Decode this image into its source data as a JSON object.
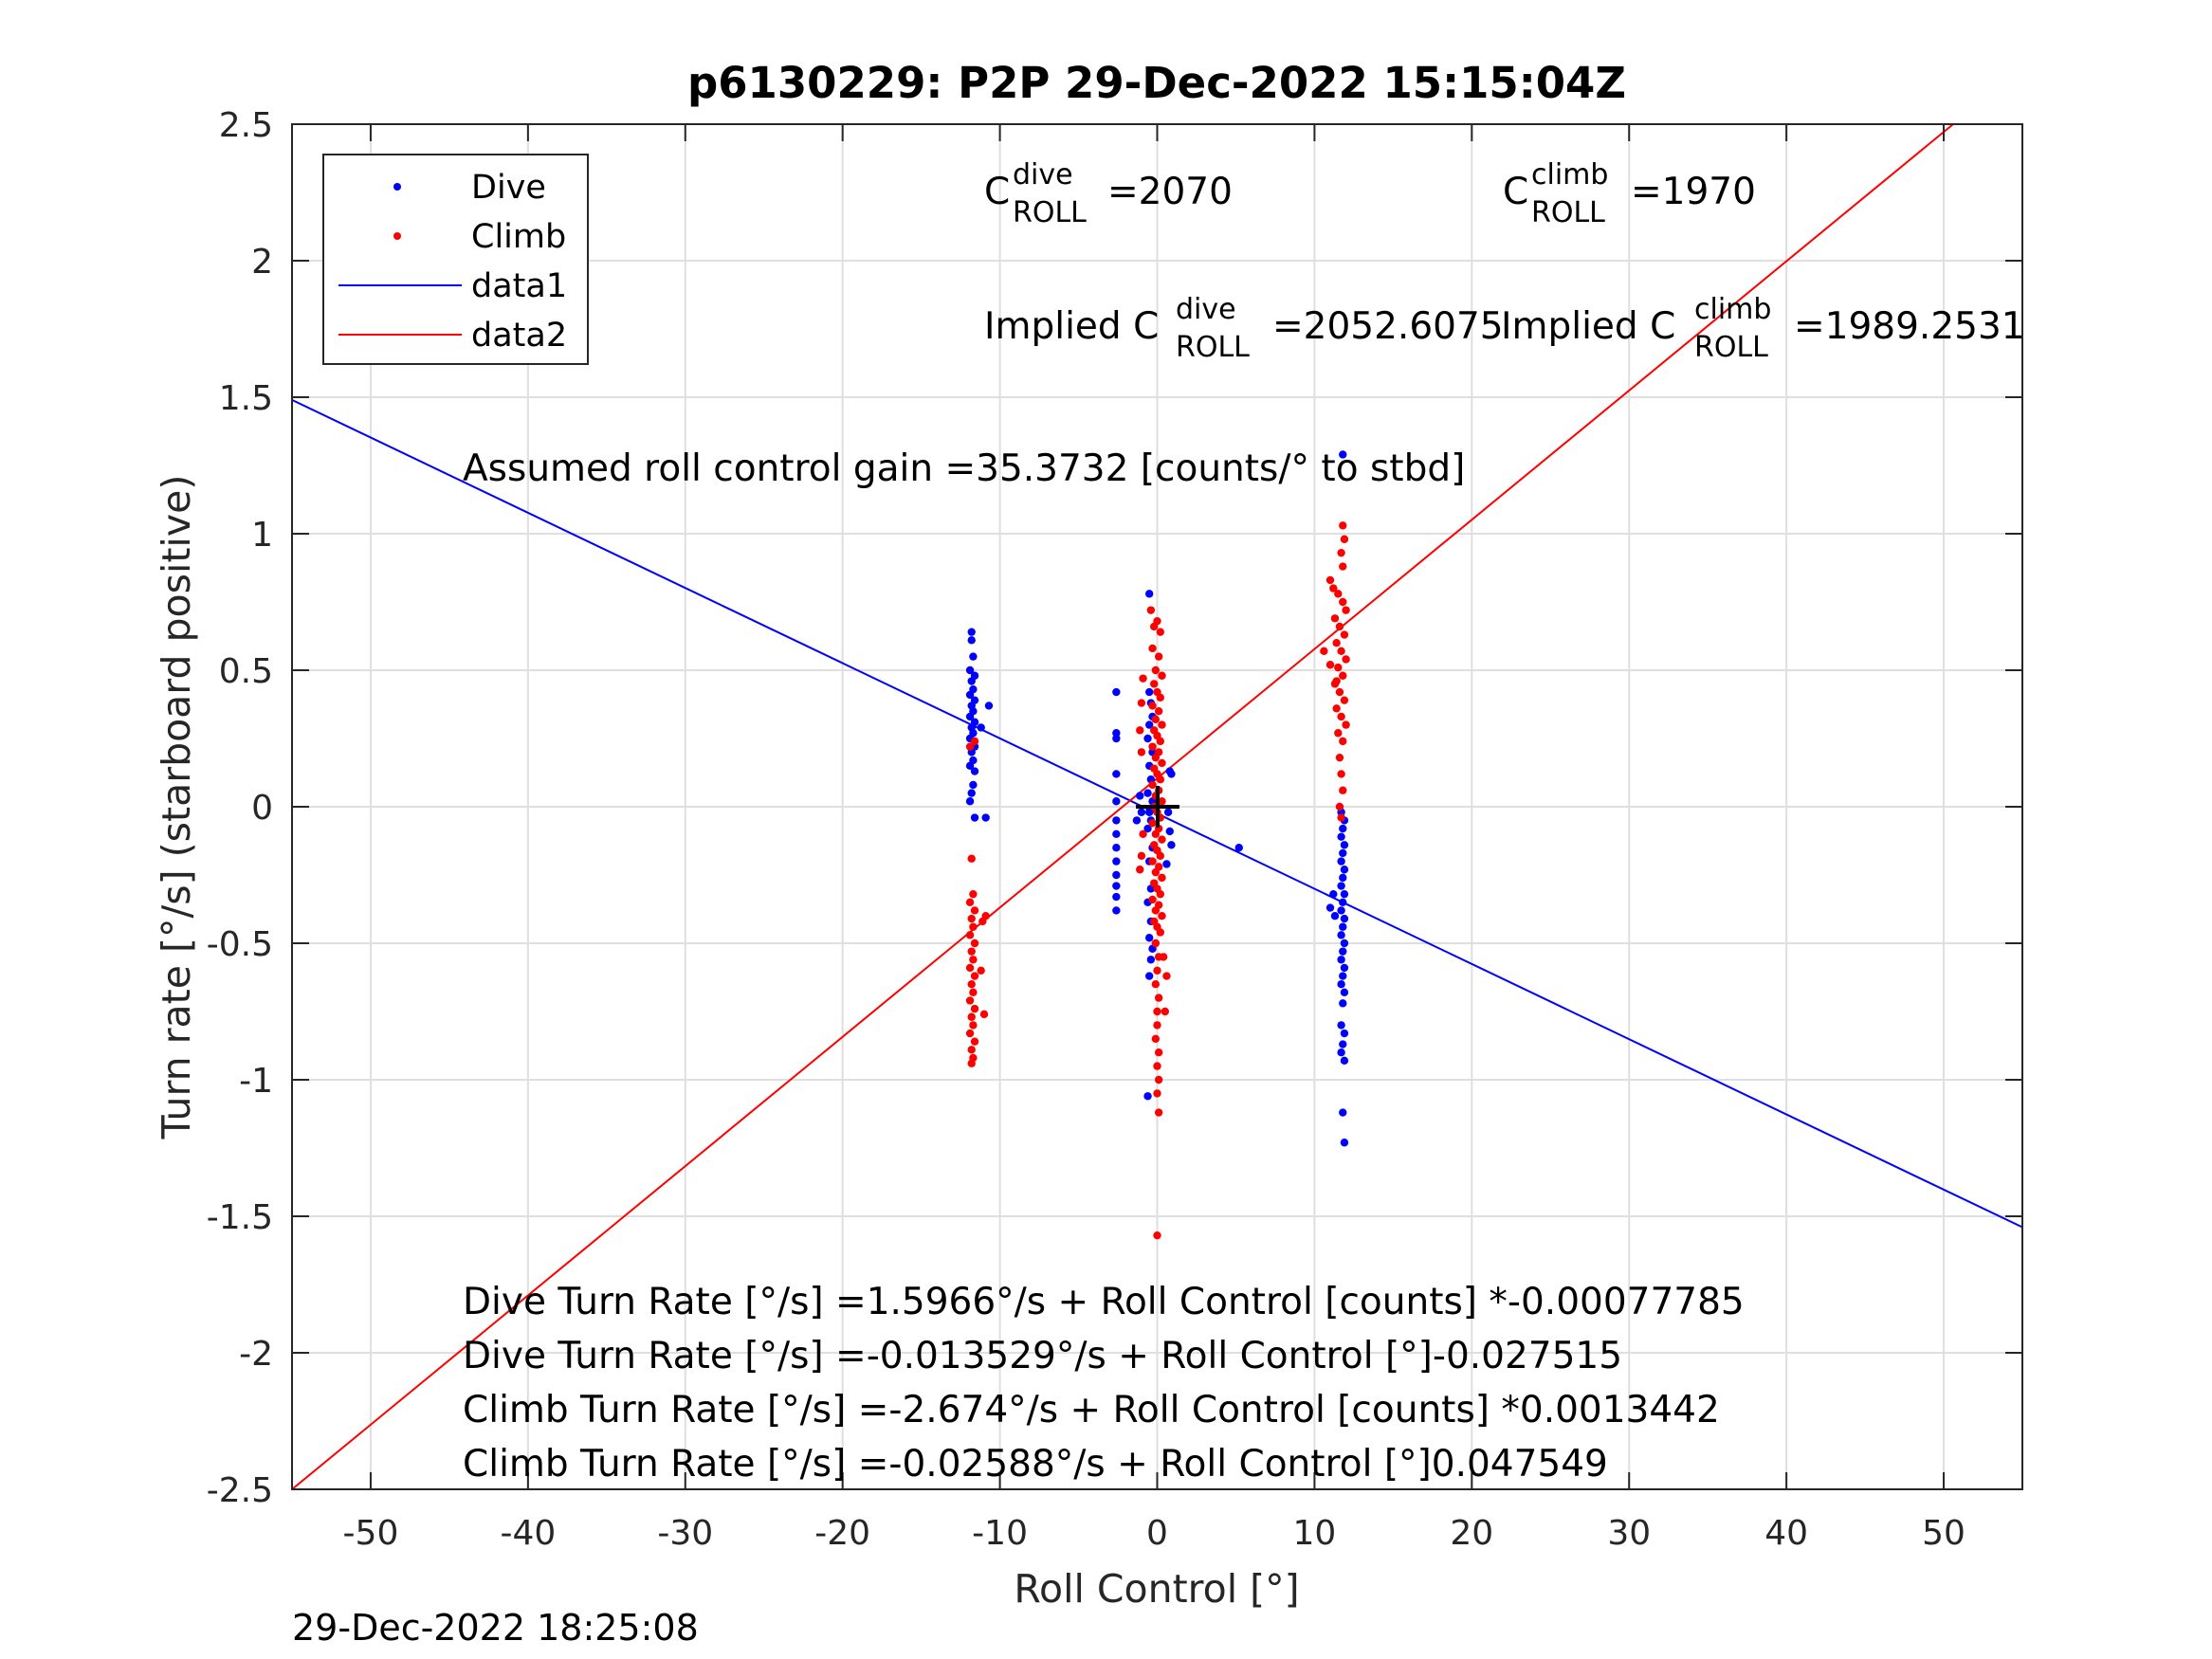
{
  "chart_data": {
    "type": "scatter",
    "title": "p6130229: P2P 29-Dec-2022 15:15:04Z",
    "xlabel": "Roll Control [°]",
    "ylabel": "Turn rate [°/s] (starboard positive)",
    "xlim": [
      -55,
      55
    ],
    "ylim": [
      -2.5,
      2.5
    ],
    "xticks": [
      -50,
      -40,
      -30,
      -20,
      -10,
      0,
      10,
      20,
      30,
      40,
      50
    ],
    "xtick_labels": [
      "-50",
      "-40",
      "-30",
      "-20",
      "-10",
      "0",
      "10",
      "20",
      "30",
      "40",
      "50"
    ],
    "yticks": [
      2.5,
      2,
      1.5,
      1,
      0.5,
      0,
      -0.5,
      -1,
      -1.5,
      -2,
      -2.5
    ],
    "ytick_labels": [
      "2.5",
      "2",
      "1.5",
      "1",
      "0.5",
      "0",
      "-0.5",
      "-1",
      "-1.5",
      "-2",
      "-2.5"
    ],
    "grid": true,
    "legend": {
      "placement": "top-left",
      "entries": [
        {
          "label": "Dive",
          "color": "#0000ff",
          "kind": "marker"
        },
        {
          "label": "Climb",
          "color": "#ff0000",
          "kind": "marker"
        },
        {
          "label": "data1",
          "color": "#0000ff",
          "kind": "line"
        },
        {
          "label": "data2",
          "color": "#ff0000",
          "kind": "line"
        }
      ]
    },
    "lines": [
      {
        "name": "data1",
        "color": "#0000ff",
        "x": [
          -55,
          55
        ],
        "y": [
          1.49,
          -1.54
        ]
      },
      {
        "name": "data2",
        "color": "#ff0000",
        "x": [
          -55,
          50.6
        ],
        "y": [
          -2.5,
          2.5
        ]
      }
    ],
    "series": [
      {
        "name": "Dive",
        "color": "#0000ff",
        "points": [
          [
            -11.8,
            0.64
          ],
          [
            -11.8,
            0.61
          ],
          [
            -11.7,
            0.55
          ],
          [
            -11.9,
            0.5
          ],
          [
            -11.6,
            0.48
          ],
          [
            -11.8,
            0.46
          ],
          [
            -11.7,
            0.43
          ],
          [
            -11.9,
            0.41
          ],
          [
            -11.6,
            0.39
          ],
          [
            -11.8,
            0.37
          ],
          [
            -11.7,
            0.35
          ],
          [
            -11.9,
            0.33
          ],
          [
            -11.6,
            0.31
          ],
          [
            -11.8,
            0.29
          ],
          [
            -11.7,
            0.27
          ],
          [
            -11.9,
            0.25
          ],
          [
            -11.6,
            0.22
          ],
          [
            -11.8,
            0.2
          ],
          [
            -11.7,
            0.17
          ],
          [
            -11.9,
            0.15
          ],
          [
            -11.6,
            0.13
          ],
          [
            -11.7,
            0.08
          ],
          [
            -11.8,
            0.05
          ],
          [
            -11.9,
            0.02
          ],
          [
            -11.6,
            -0.04
          ],
          [
            -10.9,
            -0.04
          ],
          [
            -10.7,
            0.37
          ],
          [
            -11.2,
            0.29
          ],
          [
            -2.6,
            0.42
          ],
          [
            -2.6,
            0.27
          ],
          [
            -2.6,
            0.25
          ],
          [
            -2.6,
            0.12
          ],
          [
            -2.6,
            0.02
          ],
          [
            -2.6,
            -0.05
          ],
          [
            -2.6,
            -0.1
          ],
          [
            -2.6,
            -0.15
          ],
          [
            -2.6,
            -0.2
          ],
          [
            -2.6,
            -0.25
          ],
          [
            -2.6,
            -0.29
          ],
          [
            -2.6,
            -0.33
          ],
          [
            -2.6,
            -0.38
          ],
          [
            -0.5,
            0.78
          ],
          [
            -0.5,
            0.42
          ],
          [
            -0.4,
            0.38
          ],
          [
            -0.3,
            0.33
          ],
          [
            -0.5,
            0.3
          ],
          [
            -0.6,
            0.25
          ],
          [
            -0.3,
            0.2
          ],
          [
            -0.5,
            0.15
          ],
          [
            -0.4,
            0.1
          ],
          [
            -0.6,
            0.05
          ],
          [
            -0.3,
            0.02
          ],
          [
            -0.5,
            -0.02
          ],
          [
            -0.4,
            -0.05
          ],
          [
            -0.6,
            -0.08
          ],
          [
            -0.3,
            -0.15
          ],
          [
            -0.5,
            -0.2
          ],
          [
            -0.4,
            -0.3
          ],
          [
            -0.6,
            -0.35
          ],
          [
            -0.4,
            -0.42
          ],
          [
            -0.5,
            -0.48
          ],
          [
            -0.3,
            -0.52
          ],
          [
            -0.4,
            -0.56
          ],
          [
            -0.5,
            -0.62
          ],
          [
            -0.6,
            -1.06
          ],
          [
            -1.1,
            0.04
          ],
          [
            -1.3,
            -0.05
          ],
          [
            -1.0,
            -0.02
          ],
          [
            0.8,
            0.13
          ],
          [
            0.9,
            0.12
          ],
          [
            0.7,
            -0.02
          ],
          [
            0.8,
            -0.09
          ],
          [
            0.9,
            -0.14
          ],
          [
            0.6,
            -0.21
          ],
          [
            5.2,
            -0.15
          ],
          [
            11.8,
            1.29
          ],
          [
            11.7,
            -0.02
          ],
          [
            11.9,
            -0.05
          ],
          [
            11.8,
            -0.08
          ],
          [
            11.7,
            -0.11
          ],
          [
            11.9,
            -0.14
          ],
          [
            11.8,
            -0.17
          ],
          [
            11.7,
            -0.2
          ],
          [
            11.9,
            -0.23
          ],
          [
            11.8,
            -0.26
          ],
          [
            11.7,
            -0.29
          ],
          [
            11.9,
            -0.32
          ],
          [
            11.8,
            -0.35
          ],
          [
            11.7,
            -0.38
          ],
          [
            11.9,
            -0.41
          ],
          [
            11.8,
            -0.44
          ],
          [
            11.7,
            -0.47
          ],
          [
            11.9,
            -0.5
          ],
          [
            11.8,
            -0.53
          ],
          [
            11.7,
            -0.56
          ],
          [
            11.9,
            -0.59
          ],
          [
            11.8,
            -0.62
          ],
          [
            11.7,
            -0.65
          ],
          [
            11.9,
            -0.68
          ],
          [
            11.8,
            -0.72
          ],
          [
            11.7,
            -0.8
          ],
          [
            11.9,
            -0.83
          ],
          [
            11.8,
            -0.87
          ],
          [
            11.7,
            -0.9
          ],
          [
            11.9,
            -0.93
          ],
          [
            11.8,
            -1.12
          ],
          [
            11.9,
            -1.23
          ],
          [
            11.2,
            -0.32
          ],
          [
            11.3,
            -0.4
          ],
          [
            11.0,
            -0.37
          ]
        ]
      },
      {
        "name": "Climb",
        "color": "#ff0000",
        "points": [
          [
            -11.6,
            0.24
          ],
          [
            -11.9,
            0.22
          ],
          [
            -11.8,
            -0.19
          ],
          [
            -11.7,
            -0.32
          ],
          [
            -11.9,
            -0.35
          ],
          [
            -11.6,
            -0.38
          ],
          [
            -11.8,
            -0.41
          ],
          [
            -11.7,
            -0.44
          ],
          [
            -11.9,
            -0.47
          ],
          [
            -11.6,
            -0.5
          ],
          [
            -11.8,
            -0.53
          ],
          [
            -11.7,
            -0.56
          ],
          [
            -11.9,
            -0.59
          ],
          [
            -11.6,
            -0.62
          ],
          [
            -11.8,
            -0.65
          ],
          [
            -11.7,
            -0.68
          ],
          [
            -11.9,
            -0.71
          ],
          [
            -11.6,
            -0.74
          ],
          [
            -11.8,
            -0.77
          ],
          [
            -11.7,
            -0.8
          ],
          [
            -11.9,
            -0.83
          ],
          [
            -11.6,
            -0.86
          ],
          [
            -11.8,
            -0.89
          ],
          [
            -11.7,
            -0.92
          ],
          [
            -11.8,
            -0.94
          ],
          [
            -11.1,
            -0.42
          ],
          [
            -10.9,
            -0.4
          ],
          [
            -11.0,
            -0.76
          ],
          [
            -11.2,
            -0.6
          ],
          [
            -0.9,
            0.47
          ],
          [
            -1.0,
            0.38
          ],
          [
            -1.1,
            0.28
          ],
          [
            -1.0,
            0.2
          ],
          [
            -0.9,
            -0.1
          ],
          [
            -1.0,
            -0.18
          ],
          [
            -1.1,
            -0.23
          ],
          [
            -0.4,
            0.72
          ],
          [
            -0.2,
            0.66
          ],
          [
            0.0,
            0.68
          ],
          [
            0.2,
            0.64
          ],
          [
            -0.3,
            0.58
          ],
          [
            0.1,
            0.55
          ],
          [
            -0.1,
            0.5
          ],
          [
            0.3,
            0.48
          ],
          [
            -0.2,
            0.45
          ],
          [
            0.0,
            0.42
          ],
          [
            0.2,
            0.4
          ],
          [
            -0.3,
            0.37
          ],
          [
            0.1,
            0.35
          ],
          [
            -0.1,
            0.32
          ],
          [
            0.3,
            0.3
          ],
          [
            -0.2,
            0.28
          ],
          [
            0.0,
            0.26
          ],
          [
            0.2,
            0.24
          ],
          [
            -0.3,
            0.22
          ],
          [
            0.1,
            0.2
          ],
          [
            -0.1,
            0.18
          ],
          [
            0.3,
            0.16
          ],
          [
            -0.2,
            0.14
          ],
          [
            0.0,
            0.12
          ],
          [
            0.2,
            0.1
          ],
          [
            -0.3,
            0.08
          ],
          [
            0.1,
            0.06
          ],
          [
            -0.1,
            0.04
          ],
          [
            0.3,
            0.02
          ],
          [
            -0.2,
            0.0
          ],
          [
            0.0,
            -0.02
          ],
          [
            0.2,
            -0.04
          ],
          [
            -0.3,
            -0.06
          ],
          [
            0.1,
            -0.08
          ],
          [
            -0.1,
            -0.1
          ],
          [
            0.3,
            -0.12
          ],
          [
            -0.2,
            -0.14
          ],
          [
            0.0,
            -0.16
          ],
          [
            0.2,
            -0.18
          ],
          [
            -0.3,
            -0.2
          ],
          [
            0.1,
            -0.22
          ],
          [
            -0.1,
            -0.24
          ],
          [
            0.3,
            -0.26
          ],
          [
            -0.2,
            -0.28
          ],
          [
            0.0,
            -0.3
          ],
          [
            0.2,
            -0.32
          ],
          [
            -0.3,
            -0.34
          ],
          [
            0.1,
            -0.36
          ],
          [
            -0.1,
            -0.38
          ],
          [
            0.3,
            -0.4
          ],
          [
            -0.2,
            -0.42
          ],
          [
            0.0,
            -0.44
          ],
          [
            0.2,
            -0.46
          ],
          [
            -0.1,
            -0.5
          ],
          [
            0.1,
            -0.55
          ],
          [
            0.0,
            -0.6
          ],
          [
            -0.1,
            -0.65
          ],
          [
            0.1,
            -0.7
          ],
          [
            0.0,
            -0.75
          ],
          [
            0.0,
            -0.8
          ],
          [
            -0.1,
            -0.85
          ],
          [
            0.1,
            -0.9
          ],
          [
            0.0,
            -0.95
          ],
          [
            0.1,
            -1.0
          ],
          [
            0.0,
            -1.05
          ],
          [
            0.1,
            -1.12
          ],
          [
            0.0,
            -1.57
          ],
          [
            0.5,
            -0.75
          ],
          [
            0.6,
            -0.62
          ],
          [
            0.4,
            -0.55
          ],
          [
            11.0,
            0.83
          ],
          [
            11.2,
            0.8
          ],
          [
            11.5,
            0.78
          ],
          [
            11.8,
            0.75
          ],
          [
            12.0,
            0.72
          ],
          [
            11.3,
            0.69
          ],
          [
            11.6,
            0.66
          ],
          [
            11.9,
            0.63
          ],
          [
            11.4,
            0.6
          ],
          [
            11.7,
            0.57
          ],
          [
            12.0,
            0.54
          ],
          [
            11.5,
            0.51
          ],
          [
            11.8,
            0.48
          ],
          [
            11.3,
            0.45
          ],
          [
            11.6,
            0.42
          ],
          [
            11.9,
            0.39
          ],
          [
            11.4,
            0.36
          ],
          [
            11.7,
            0.33
          ],
          [
            12.0,
            0.3
          ],
          [
            11.5,
            0.27
          ],
          [
            11.8,
            0.24
          ],
          [
            11.6,
            0.18
          ],
          [
            11.7,
            0.12
          ],
          [
            11.8,
            0.06
          ],
          [
            11.6,
            0.0
          ],
          [
            11.7,
            -0.04
          ],
          [
            11.8,
            1.03
          ],
          [
            11.9,
            0.98
          ],
          [
            11.7,
            0.93
          ],
          [
            11.8,
            0.88
          ],
          [
            10.6,
            0.57
          ],
          [
            11.0,
            0.52
          ],
          [
            11.4,
            0.46
          ]
        ]
      }
    ],
    "annotations": {
      "c_roll_dive": "=2070",
      "c_roll_climb": "=1970",
      "implied_dive": "=2052.6075",
      "implied_climb": "=1989.2531",
      "gain": "Assumed roll control gain =35.3732 [counts/° to stbd]",
      "eq1": "Dive Turn Rate [°/s] =1.5966°/s + Roll Control [counts] *-0.00077785",
      "eq2": "Dive Turn Rate [°/s] =-0.013529°/s + Roll Control [°]-0.027515",
      "eq3": "Climb Turn Rate [°/s] =-2.674°/s + Roll Control [counts] *0.0013442",
      "eq4": "Climb Turn Rate [°/s] =-0.02588°/s + Roll Control [°]0.047549"
    },
    "labels": {
      "c": "C",
      "implied": "Implied C",
      "sup_dive": "dive",
      "sup_climb": "climb",
      "sub_roll": "ROLL"
    },
    "timestamp": "29-Dec-2022 18:25:08"
  }
}
